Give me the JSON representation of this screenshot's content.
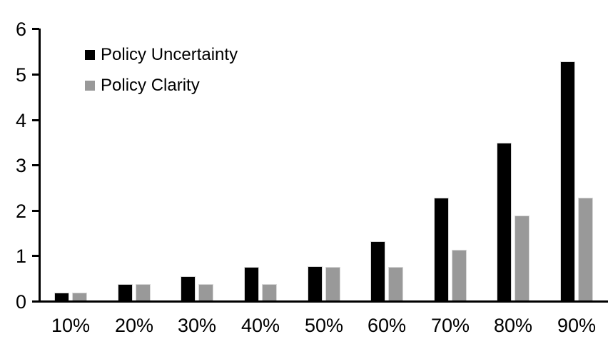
{
  "chart_data": {
    "type": "bar",
    "title": "",
    "xlabel": "",
    "ylabel": "",
    "categories": [
      "10%",
      "20%",
      "30%",
      "40%",
      "50%",
      "60%",
      "70%",
      "80%",
      "90%"
    ],
    "series": [
      {
        "name": "Policy Uncertainty",
        "color": "#000000",
        "values": [
          0.2,
          0.4,
          0.57,
          0.77,
          0.78,
          1.33,
          2.3,
          3.5,
          5.3
        ]
      },
      {
        "name": "Policy Clarity",
        "color": "#999999",
        "values": [
          0.2,
          0.4,
          0.4,
          0.4,
          0.77,
          0.77,
          1.14,
          1.9,
          2.3
        ]
      }
    ],
    "ylim": [
      0,
      6
    ],
    "yticks": [
      "0",
      "1",
      "2",
      "3",
      "4",
      "5",
      "6"
    ],
    "grid": false,
    "legend_position": "upper-left-inside",
    "axis_color": "#000000",
    "background_color": "#ffffff"
  }
}
